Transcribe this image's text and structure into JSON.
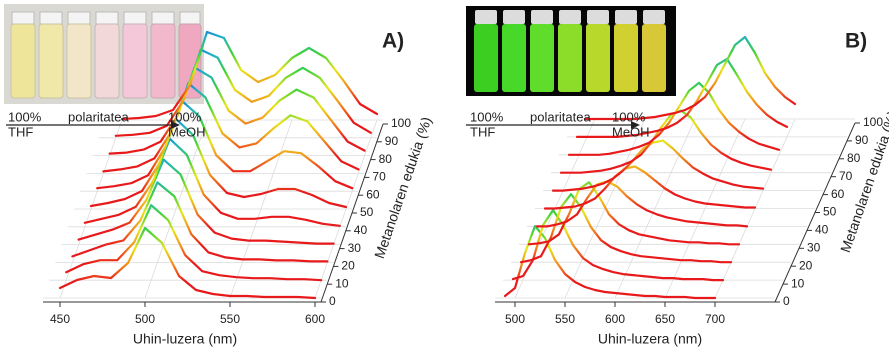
{
  "chart_data": [
    {
      "type": "waterfall",
      "panel_label": "A)",
      "annotations": [
        "100%",
        "THF",
        "polaritatea",
        "100%",
        "MeOH"
      ],
      "x_label": "Uhin-luzera (nm)",
      "z_label": "Metanolaren edukia (%)",
      "x": [
        450,
        460,
        470,
        480,
        490,
        500,
        510,
        520,
        530,
        540,
        550,
        560,
        570,
        580,
        590,
        600
      ],
      "xlim": [
        440,
        600
      ],
      "xticks": [
        450,
        500,
        550,
        600
      ],
      "zlim": [
        0,
        100
      ],
      "zticks": [
        0,
        10,
        20,
        30,
        40,
        50,
        60,
        70,
        80,
        90,
        100
      ],
      "ylim": [
        0,
        1
      ],
      "grid": true,
      "colormap": [
        "#e8191a",
        "#e8191a",
        "#f28c1e",
        "#e9e61c",
        "#3fd23a",
        "#1fb0c8",
        "#1c2ee0"
      ],
      "series": [
        {
          "z": 0,
          "values": [
            0.1,
            0.18,
            0.22,
            0.2,
            0.35,
            0.7,
            0.55,
            0.22,
            0.08,
            0.04,
            0.02,
            0.02,
            0.01,
            0.01,
            0.01,
            0.0
          ]
        },
        {
          "z": 10,
          "values": [
            0.08,
            0.16,
            0.2,
            0.2,
            0.38,
            0.75,
            0.6,
            0.25,
            0.09,
            0.05,
            0.03,
            0.02,
            0.02,
            0.01,
            0.01,
            0.0
          ]
        },
        {
          "z": 20,
          "values": [
            0.06,
            0.12,
            0.18,
            0.22,
            0.42,
            0.8,
            0.66,
            0.28,
            0.1,
            0.05,
            0.03,
            0.03,
            0.02,
            0.02,
            0.01,
            0.01
          ]
        },
        {
          "z": 30,
          "values": [
            0.05,
            0.1,
            0.15,
            0.22,
            0.45,
            0.85,
            0.7,
            0.3,
            0.12,
            0.06,
            0.04,
            0.04,
            0.03,
            0.02,
            0.01,
            0.01
          ]
        },
        {
          "z": 40,
          "values": [
            0.04,
            0.08,
            0.12,
            0.2,
            0.45,
            0.88,
            0.72,
            0.32,
            0.14,
            0.08,
            0.08,
            0.1,
            0.1,
            0.07,
            0.03,
            0.01
          ]
        },
        {
          "z": 50,
          "values": [
            0.03,
            0.06,
            0.1,
            0.18,
            0.45,
            0.9,
            0.74,
            0.34,
            0.16,
            0.12,
            0.15,
            0.2,
            0.2,
            0.14,
            0.06,
            0.02
          ]
        },
        {
          "z": 60,
          "values": [
            0.03,
            0.05,
            0.08,
            0.16,
            0.44,
            0.9,
            0.75,
            0.36,
            0.2,
            0.2,
            0.3,
            0.4,
            0.38,
            0.25,
            0.1,
            0.03
          ]
        },
        {
          "z": 70,
          "values": [
            0.02,
            0.04,
            0.07,
            0.15,
            0.42,
            0.9,
            0.76,
            0.4,
            0.26,
            0.3,
            0.45,
            0.58,
            0.52,
            0.32,
            0.12,
            0.04
          ]
        },
        {
          "z": 80,
          "values": [
            0.02,
            0.03,
            0.06,
            0.14,
            0.4,
            0.88,
            0.78,
            0.45,
            0.32,
            0.38,
            0.55,
            0.66,
            0.58,
            0.36,
            0.14,
            0.05
          ]
        },
        {
          "z": 90,
          "values": [
            0.02,
            0.03,
            0.05,
            0.12,
            0.38,
            0.88,
            0.8,
            0.48,
            0.36,
            0.42,
            0.6,
            0.7,
            0.6,
            0.38,
            0.15,
            0.05
          ]
        },
        {
          "z": 100,
          "values": [
            0.01,
            0.02,
            0.04,
            0.1,
            0.35,
            0.88,
            0.82,
            0.5,
            0.38,
            0.45,
            0.62,
            0.72,
            0.62,
            0.4,
            0.16,
            0.06
          ]
        }
      ]
    },
    {
      "type": "waterfall",
      "panel_label": "B)",
      "annotations": [
        "100%",
        "THF",
        "polaritatea",
        "100%",
        "MeOH"
      ],
      "x_label": "Uhin-luzera (nm)",
      "z_label": "Metanolaren edukia (%)",
      "x": [
        490,
        500,
        510,
        520,
        530,
        540,
        550,
        560,
        570,
        580,
        590,
        600,
        610,
        620,
        630,
        640,
        650,
        660,
        670,
        680,
        690,
        700
      ],
      "xlim": [
        480,
        700
      ],
      "xticks": [
        500,
        550,
        600,
        650,
        700
      ],
      "zlim": [
        0,
        100
      ],
      "zticks": [
        0,
        10,
        20,
        30,
        40,
        50,
        60,
        70,
        80,
        90,
        100
      ],
      "ylim": [
        0,
        1
      ],
      "grid": true,
      "colormap": [
        "#e8191a",
        "#e8191a",
        "#f28c1e",
        "#e9e61c",
        "#3fd23a",
        "#1fb0c8",
        "#1c2ee0"
      ],
      "series": [
        {
          "z": 0,
          "values": [
            0.02,
            0.1,
            0.45,
            0.72,
            0.6,
            0.38,
            0.24,
            0.16,
            0.11,
            0.08,
            0.06,
            0.05,
            0.04,
            0.03,
            0.02,
            0.02,
            0.01,
            0.01,
            0.01,
            0.0,
            0.0,
            0.0
          ]
        },
        {
          "z": 10,
          "values": [
            0.01,
            0.04,
            0.2,
            0.55,
            0.7,
            0.55,
            0.35,
            0.22,
            0.15,
            0.11,
            0.08,
            0.06,
            0.05,
            0.04,
            0.03,
            0.02,
            0.02,
            0.01,
            0.01,
            0.01,
            0.0,
            0.0
          ]
        },
        {
          "z": 20,
          "values": [
            0.0,
            0.02,
            0.06,
            0.25,
            0.55,
            0.68,
            0.55,
            0.35,
            0.22,
            0.15,
            0.11,
            0.08,
            0.06,
            0.05,
            0.04,
            0.03,
            0.02,
            0.02,
            0.01,
            0.01,
            0.0,
            0.0
          ]
        },
        {
          "z": 30,
          "values": [
            0,
            0.01,
            0.03,
            0.1,
            0.3,
            0.55,
            0.62,
            0.48,
            0.3,
            0.2,
            0.14,
            0.1,
            0.08,
            0.06,
            0.04,
            0.03,
            0.02,
            0.02,
            0.01,
            0.01,
            0,
            0
          ]
        },
        {
          "z": 40,
          "values": [
            0,
            0,
            0.02,
            0.05,
            0.12,
            0.28,
            0.42,
            0.45,
            0.4,
            0.3,
            0.22,
            0.16,
            0.12,
            0.09,
            0.07,
            0.05,
            0.04,
            0.03,
            0.02,
            0.01,
            0.01,
            0
          ]
        },
        {
          "z": 50,
          "values": [
            0,
            0,
            0.01,
            0.02,
            0.05,
            0.1,
            0.2,
            0.32,
            0.4,
            0.42,
            0.36,
            0.28,
            0.2,
            0.14,
            0.1,
            0.07,
            0.05,
            0.04,
            0.03,
            0.02,
            0.01,
            0.01
          ]
        },
        {
          "z": 60,
          "values": [
            0,
            0,
            0.01,
            0.02,
            0.04,
            0.07,
            0.12,
            0.2,
            0.3,
            0.42,
            0.48,
            0.5,
            0.42,
            0.32,
            0.23,
            0.17,
            0.12,
            0.09,
            0.06,
            0.04,
            0.03,
            0.02
          ]
        },
        {
          "z": 70,
          "values": [
            0,
            0,
            0,
            0.01,
            0.02,
            0.04,
            0.07,
            0.11,
            0.18,
            0.3,
            0.45,
            0.58,
            0.62,
            0.55,
            0.4,
            0.28,
            0.2,
            0.14,
            0.1,
            0.07,
            0.05,
            0.03
          ]
        },
        {
          "z": 80,
          "values": [
            0,
            0,
            0,
            0,
            0.01,
            0.03,
            0.05,
            0.08,
            0.12,
            0.2,
            0.32,
            0.48,
            0.64,
            0.72,
            0.62,
            0.45,
            0.32,
            0.23,
            0.16,
            0.11,
            0.08,
            0.05
          ]
        },
        {
          "z": 90,
          "values": [
            0,
            0,
            0,
            0,
            0,
            0.01,
            0.02,
            0.04,
            0.06,
            0.09,
            0.14,
            0.22,
            0.36,
            0.54,
            0.72,
            0.78,
            0.62,
            0.45,
            0.32,
            0.22,
            0.15,
            0.1
          ]
        },
        {
          "z": 100,
          "values": [
            0,
            0,
            0,
            0,
            0,
            0,
            0.01,
            0.02,
            0.04,
            0.06,
            0.09,
            0.14,
            0.22,
            0.36,
            0.55,
            0.74,
            0.82,
            0.66,
            0.46,
            0.32,
            0.22,
            0.15
          ]
        }
      ]
    }
  ]
}
